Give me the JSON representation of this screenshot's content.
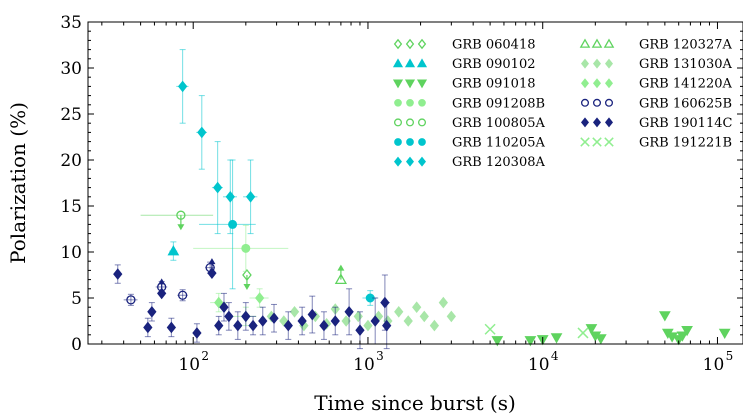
{
  "chart_data": {
    "type": "scatter",
    "xlabel": "Time since burst (s)",
    "ylabel": "Polarization (%)",
    "x_scale": "log",
    "xlim": [
      25,
      140000
    ],
    "ylim": [
      0,
      35
    ],
    "x_ticks": [
      100,
      1000,
      10000,
      100000
    ],
    "x_tick_labels": [
      "10",
      "10",
      "10",
      "10"
    ],
    "x_tick_exponents": [
      "2",
      "3",
      "4",
      "5"
    ],
    "y_ticks": [
      0,
      5,
      10,
      15,
      20,
      25,
      30,
      35
    ],
    "y_tick_labels": [
      "0",
      "5",
      "10",
      "15",
      "20",
      "25",
      "30",
      "35"
    ],
    "grid": false,
    "legend_position": "top-right",
    "series": [
      {
        "name": "GRB 060418",
        "marker": "diamond-open",
        "color": "#5fd35f",
        "points": [
          {
            "x": 203,
            "y": 7.5,
            "limit": true
          }
        ]
      },
      {
        "name": "GRB 090102",
        "marker": "triangle-up",
        "color": "#00c5cd",
        "points": [
          {
            "x": 77,
            "y": 10.1,
            "xerr": [
              4,
              4
            ],
            "yerr": [
              1.0,
              1.0
            ]
          }
        ]
      },
      {
        "name": "GRB 091018",
        "marker": "triangle-down",
        "color": "#5fd35f",
        "points": [
          {
            "x": 5500,
            "y": 0.4
          },
          {
            "x": 8500,
            "y": 0.4
          },
          {
            "x": 10000,
            "y": 0.5
          },
          {
            "x": 12000,
            "y": 0.7
          },
          {
            "x": 19000,
            "y": 1.7
          },
          {
            "x": 20000,
            "y": 0.9
          },
          {
            "x": 21500,
            "y": 0.6
          },
          {
            "x": 50000,
            "y": 3.1
          },
          {
            "x": 52000,
            "y": 1.2
          },
          {
            "x": 55000,
            "y": 0.8
          },
          {
            "x": 60000,
            "y": 0.5
          },
          {
            "x": 63000,
            "y": 0.9
          },
          {
            "x": 67000,
            "y": 1.5
          },
          {
            "x": 110000,
            "y": 1.2
          }
        ]
      },
      {
        "name": "GRB 091208B",
        "marker": "circle",
        "color": "#90ee90",
        "points": [
          {
            "x": 200,
            "y": 10.4,
            "xerr": [
              100,
              150
            ],
            "yerr": [
              2.5,
              2.5
            ]
          }
        ]
      },
      {
        "name": "GRB 100805A",
        "marker": "circle-open",
        "color": "#5fd35f",
        "points": [
          {
            "x": 85,
            "y": 14.0,
            "xerr": [
              35,
              45
            ],
            "limit": true
          }
        ]
      },
      {
        "name": "GRB 110205A",
        "marker": "circle",
        "color": "#00c5cd",
        "points": [
          {
            "x": 168,
            "y": 13.0,
            "xerr": [
              60,
              60
            ],
            "yerr": [
              7,
              7
            ]
          },
          {
            "x": 1030,
            "y": 5.0,
            "xerr": [
              100,
              100
            ],
            "yerr": [
              0.8,
              0.8
            ]
          }
        ]
      },
      {
        "name": "GRB 120308A",
        "marker": "diamond",
        "color": "#00c5cd",
        "points": [
          {
            "x": 87,
            "y": 28.0,
            "xerr": [
              7,
              7
            ],
            "yerr": [
              4,
              4
            ]
          },
          {
            "x": 112,
            "y": 23.0,
            "xerr": [
              8,
              8
            ],
            "yerr": [
              4,
              4
            ]
          },
          {
            "x": 138,
            "y": 17.0,
            "xerr": [
              10,
              10
            ],
            "yerr": [
              5,
              5
            ]
          },
          {
            "x": 163,
            "y": 16.0,
            "xerr": [
              15,
              15
            ],
            "yerr": [
              4,
              4
            ]
          },
          {
            "x": 213,
            "y": 16.0,
            "xerr": [
              20,
              20
            ],
            "yerr": [
              4,
              4
            ]
          }
        ]
      },
      {
        "name": "GRB 120327A",
        "marker": "triangle-up-open",
        "color": "#5fd35f",
        "points": [
          {
            "x": 700,
            "y": 7.0,
            "limit": true
          }
        ]
      },
      {
        "name": "GRB 131030A",
        "marker": "diamond",
        "color": "#a8e6a8",
        "points": [
          {
            "x": 280,
            "y": 3.0
          },
          {
            "x": 330,
            "y": 2.5
          },
          {
            "x": 380,
            "y": 3.5
          },
          {
            "x": 430,
            "y": 2.0
          },
          {
            "x": 500,
            "y": 3.0
          },
          {
            "x": 580,
            "y": 2.2
          },
          {
            "x": 650,
            "y": 3.8
          },
          {
            "x": 750,
            "y": 2.5
          },
          {
            "x": 880,
            "y": 3.0
          },
          {
            "x": 1000,
            "y": 2.0
          },
          {
            "x": 1150,
            "y": 3.0
          },
          {
            "x": 1300,
            "y": 2.5
          },
          {
            "x": 1500,
            "y": 3.5
          },
          {
            "x": 1700,
            "y": 2.5
          },
          {
            "x": 1900,
            "y": 4.0
          },
          {
            "x": 2100,
            "y": 3.0
          },
          {
            "x": 2400,
            "y": 2.0
          },
          {
            "x": 2700,
            "y": 4.5
          },
          {
            "x": 3000,
            "y": 3.0
          }
        ]
      },
      {
        "name": "GRB 141220A",
        "marker": "diamond",
        "color": "#90ee90",
        "points": [
          {
            "x": 140,
            "y": 4.5,
            "xerr": [
              15,
              15
            ],
            "yerr": [
              1,
              1
            ]
          },
          {
            "x": 200,
            "y": 3.0,
            "xerr": [
              30,
              30
            ],
            "yerr": [
              1,
              1
            ]
          },
          {
            "x": 240,
            "y": 5.0,
            "xerr": [
              30,
              30
            ],
            "yerr": [
              1,
              1
            ]
          }
        ]
      },
      {
        "name": "GRB 160625B",
        "marker": "circle-open",
        "color": "#1a237e",
        "points": [
          {
            "x": 44,
            "y": 4.8,
            "xerr": [
              4,
              4
            ],
            "yerr": [
              0.6,
              0.6
            ]
          },
          {
            "x": 66,
            "y": 6.2,
            "xerr": [
              5,
              5
            ],
            "yerr": [
              0.6,
              0.6
            ]
          },
          {
            "x": 87,
            "y": 5.3,
            "xerr": [
              6,
              6
            ],
            "yerr": [
              0.6,
              0.6
            ]
          },
          {
            "x": 125,
            "y": 8.3,
            "xerr": [
              8,
              8
            ],
            "yerr": [
              0.6,
              0.6
            ]
          }
        ]
      },
      {
        "name": "GRB 190114C",
        "marker": "diamond",
        "color": "#1a237e",
        "points": [
          {
            "x": 37,
            "y": 7.6,
            "yerr": [
              1.0,
              1.0
            ]
          },
          {
            "x": 55,
            "y": 1.8,
            "yerr": [
              1,
              1
            ]
          },
          {
            "x": 58,
            "y": 3.5,
            "yerr": [
              1,
              1
            ]
          },
          {
            "x": 66,
            "y": 5.5,
            "limit": true
          },
          {
            "x": 75,
            "y": 1.8,
            "yerr": [
              1,
              1
            ]
          },
          {
            "x": 105,
            "y": 1.2,
            "yerr": [
              1,
              1
            ]
          },
          {
            "x": 128,
            "y": 7.7,
            "limit": true
          },
          {
            "x": 140,
            "y": 2.0,
            "yerr": [
              1,
              1
            ]
          },
          {
            "x": 150,
            "y": 4.0,
            "yerr": [
              1.5,
              1.5
            ]
          },
          {
            "x": 160,
            "y": 3.0,
            "yerr": [
              1.5,
              1.5
            ]
          },
          {
            "x": 180,
            "y": 2.0,
            "yerr": [
              1.5,
              1.5
            ]
          },
          {
            "x": 200,
            "y": 3.0,
            "yerr": [
              1.5,
              1.5
            ]
          },
          {
            "x": 220,
            "y": 2.0,
            "yerr": [
              1,
              1
            ]
          },
          {
            "x": 250,
            "y": 2.5,
            "yerr": [
              1.5,
              1.5
            ]
          },
          {
            "x": 290,
            "y": 2.8,
            "yerr": [
              1.5,
              1.5
            ]
          },
          {
            "x": 350,
            "y": 2.0,
            "yerr": [
              1.5,
              1.5
            ]
          },
          {
            "x": 420,
            "y": 2.5,
            "yerr": [
              1.5,
              1.5
            ]
          },
          {
            "x": 480,
            "y": 3.2,
            "yerr": [
              2,
              2
            ]
          },
          {
            "x": 560,
            "y": 2.0,
            "yerr": [
              1.5,
              1.5
            ]
          },
          {
            "x": 650,
            "y": 2.5,
            "yerr": [
              1.5,
              1.5
            ]
          },
          {
            "x": 780,
            "y": 3.5,
            "yerr": [
              2.5,
              2.5
            ]
          },
          {
            "x": 900,
            "y": 1.5,
            "yerr": [
              2,
              2
            ]
          },
          {
            "x": 1100,
            "y": 2.5,
            "yerr": [
              2.5,
              2.5
            ]
          },
          {
            "x": 1250,
            "y": 4.5,
            "yerr": [
              3,
              3
            ]
          },
          {
            "x": 1280,
            "y": 2.0,
            "yerr": [
              2.5,
              2.5
            ]
          }
        ]
      },
      {
        "name": "GRB 191221B",
        "marker": "x",
        "color": "#90ee90",
        "points": [
          {
            "x": 5000,
            "y": 1.6
          },
          {
            "x": 17000,
            "y": 1.2
          }
        ]
      }
    ]
  }
}
